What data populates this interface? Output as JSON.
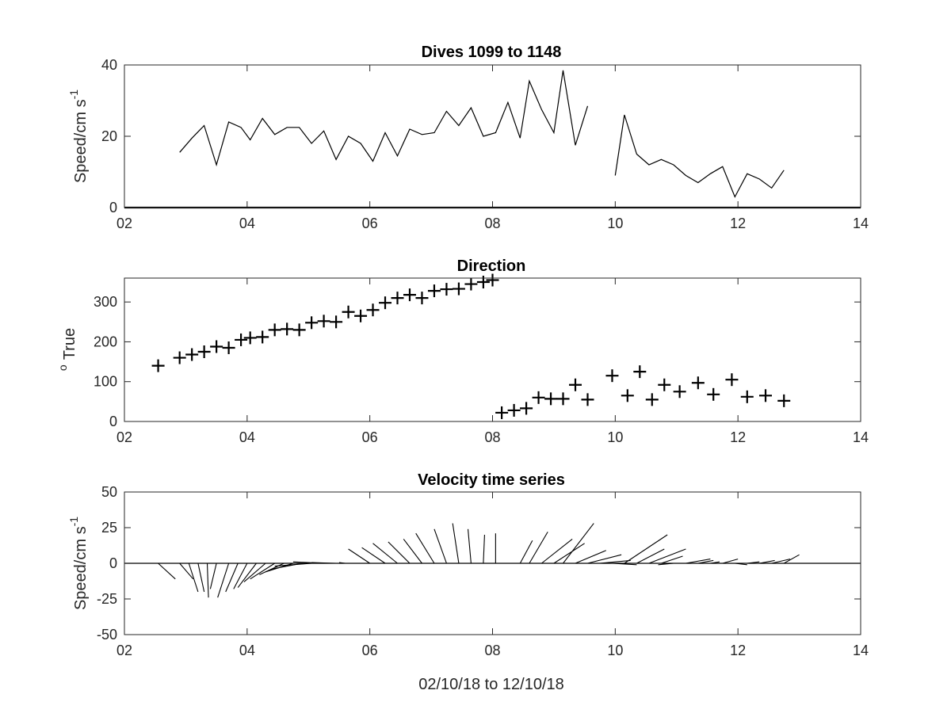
{
  "chart_data": [
    {
      "type": "line",
      "title": "Dives 1099 to 1148",
      "ylabel_main": "Speed/cm s",
      "ylabel_sup": "-1",
      "xlim": [
        2,
        14
      ],
      "ylim": [
        0,
        40
      ],
      "xticks": [
        2,
        4,
        6,
        8,
        10,
        12,
        14
      ],
      "xtick_labels": [
        "02",
        "04",
        "06",
        "08",
        "10",
        "12",
        "14"
      ],
      "yticks": [
        0,
        20,
        40
      ],
      "ytick_labels": [
        "0",
        "20",
        "40"
      ],
      "zero_line": true,
      "segments": [
        {
          "x": [
            2.9,
            3.1,
            3.3,
            3.5,
            3.7,
            3.9,
            4.05,
            4.25,
            4.45,
            4.65,
            4.85,
            5.05,
            5.25,
            5.45,
            5.65,
            5.85,
            6.05,
            6.25,
            6.45,
            6.65,
            6.85,
            7.05,
            7.25,
            7.45,
            7.65,
            7.85,
            8.05,
            8.25,
            8.45,
            8.6,
            8.8,
            9.0,
            9.15,
            9.35,
            9.55
          ],
          "y": [
            15.5,
            19.5,
            23,
            12,
            24,
            22.5,
            19,
            25,
            20.5,
            22.5,
            22.5,
            18,
            21.5,
            13.5,
            20,
            18,
            13,
            21,
            14.5,
            22,
            20.5,
            21,
            27,
            23,
            28,
            20,
            21,
            29.5,
            19.5,
            35.5,
            27.5,
            21,
            38.5,
            17.5,
            28.5
          ]
        },
        {
          "x": [
            10.0,
            10.15,
            10.35,
            10.55,
            10.75,
            10.95,
            11.15,
            11.35,
            11.55,
            11.75,
            11.95,
            12.15,
            12.35,
            12.55,
            12.75
          ],
          "y": [
            9,
            26,
            15,
            12,
            13.5,
            12,
            9,
            7,
            9.5,
            11.5,
            3,
            9.5,
            8,
            5.5,
            10.5
          ]
        }
      ]
    },
    {
      "type": "scatter",
      "title": "Direction",
      "ylabel_main": "True",
      "ylabel_pre": "o",
      "marker": "+",
      "xlim": [
        2,
        14
      ],
      "ylim": [
        0,
        360
      ],
      "xticks": [
        2,
        4,
        6,
        8,
        10,
        12,
        14
      ],
      "xtick_labels": [
        "02",
        "04",
        "06",
        "08",
        "10",
        "12",
        "14"
      ],
      "yticks": [
        0,
        100,
        200,
        300
      ],
      "ytick_labels": [
        "0",
        "100",
        "200",
        "300"
      ],
      "x": [
        2.55,
        2.9,
        3.1,
        3.3,
        3.5,
        3.7,
        3.9,
        4.05,
        4.25,
        4.45,
        4.65,
        4.85,
        5.05,
        5.25,
        5.45,
        5.65,
        5.85,
        6.05,
        6.25,
        6.45,
        6.65,
        6.85,
        7.05,
        7.25,
        7.45,
        7.65,
        7.85,
        8.0,
        8.15,
        8.35,
        8.55,
        8.75,
        8.95,
        9.15,
        9.35,
        9.55,
        9.95,
        10.2,
        10.4,
        10.6,
        10.8,
        11.05,
        11.35,
        11.6,
        11.9,
        12.15,
        12.45,
        12.75
      ],
      "y": [
        140,
        160,
        168,
        175,
        188,
        185,
        205,
        210,
        212,
        230,
        232,
        230,
        248,
        252,
        250,
        275,
        265,
        280,
        298,
        310,
        318,
        310,
        328,
        332,
        333,
        345,
        350,
        355,
        22,
        28,
        33,
        60,
        57,
        57,
        92,
        55,
        115,
        65,
        125,
        55,
        92,
        75,
        97,
        68,
        105,
        62,
        65,
        52
      ]
    },
    {
      "type": "quiver",
      "title": "Velocity time series",
      "ylabel_main": "Speed/cm s",
      "ylabel_sup": "-1",
      "xlabel": "02/10/18 to 12/10/18",
      "xlim": [
        2,
        14
      ],
      "ylim": [
        -50,
        50
      ],
      "xticks": [
        2,
        4,
        6,
        8,
        10,
        12,
        14
      ],
      "xtick_labels": [
        "02",
        "04",
        "06",
        "08",
        "10",
        "12",
        "14"
      ],
      "yticks": [
        -50,
        -25,
        0,
        25,
        50
      ],
      "ytick_labels": [
        "-50",
        "-25",
        "0",
        "25",
        "50"
      ],
      "vectors": [
        {
          "x": 2.55,
          "dx": 0.28,
          "dy": -11
        },
        {
          "x": 2.9,
          "dx": 0.22,
          "dy": -11
        },
        {
          "x": 3.05,
          "dx": 0.15,
          "dy": -20
        },
        {
          "x": 3.2,
          "dx": 0.1,
          "dy": -20
        },
        {
          "x": 3.35,
          "dx": 0.02,
          "dy": -24
        },
        {
          "x": 3.5,
          "dx": -0.1,
          "dy": -18
        },
        {
          "x": 3.7,
          "dx": -0.18,
          "dy": -24
        },
        {
          "x": 3.85,
          "dx": -0.2,
          "dy": -20
        },
        {
          "x": 4.0,
          "dx": -0.22,
          "dy": -18
        },
        {
          "x": 4.15,
          "dx": -0.3,
          "dy": -17
        },
        {
          "x": 4.3,
          "dx": -0.35,
          "dy": -13
        },
        {
          "x": 4.45,
          "dx": -0.4,
          "dy": -11
        },
        {
          "x": 4.6,
          "dx": -0.4,
          "dy": -8
        },
        {
          "x": 4.75,
          "dx": -0.45,
          "dy": -6
        },
        {
          "x": 4.9,
          "dx": -0.5,
          "dy": -4
        },
        {
          "x": 5.05,
          "dx": -0.6,
          "dy": -2
        },
        {
          "x": 5.25,
          "dx": -0.5,
          "dy": 1
        },
        {
          "x": 5.45,
          "dx": -0.4,
          "dy": 0.5
        },
        {
          "x": 5.6,
          "dx": -0.1,
          "dy": 0.5
        },
        {
          "x": 6.0,
          "dx": -0.35,
          "dy": 10
        },
        {
          "x": 6.25,
          "dx": -0.38,
          "dy": 11
        },
        {
          "x": 6.45,
          "dx": -0.4,
          "dy": 14
        },
        {
          "x": 6.65,
          "dx": -0.35,
          "dy": 15
        },
        {
          "x": 6.85,
          "dx": -0.3,
          "dy": 17
        },
        {
          "x": 7.05,
          "dx": -0.3,
          "dy": 21
        },
        {
          "x": 7.25,
          "dx": -0.2,
          "dy": 24
        },
        {
          "x": 7.45,
          "dx": -0.1,
          "dy": 28
        },
        {
          "x": 7.65,
          "dx": -0.05,
          "dy": 24
        },
        {
          "x": 7.85,
          "dx": 0.02,
          "dy": 20
        },
        {
          "x": 8.05,
          "dx": 0.0,
          "dy": 21
        },
        {
          "x": 8.45,
          "dx": 0.2,
          "dy": 16
        },
        {
          "x": 8.6,
          "dx": 0.3,
          "dy": 22
        },
        {
          "x": 8.8,
          "dx": 0.5,
          "dy": 17
        },
        {
          "x": 9.0,
          "dx": 0.5,
          "dy": 14
        },
        {
          "x": 9.15,
          "dx": 0.5,
          "dy": 28
        },
        {
          "x": 9.35,
          "dx": 0.5,
          "dy": 9
        },
        {
          "x": 9.55,
          "dx": 0.55,
          "dy": 6
        },
        {
          "x": 9.75,
          "dx": 0.5,
          "dy": 2
        },
        {
          "x": 9.95,
          "dx": 0.4,
          "dy": -1
        },
        {
          "x": 10.15,
          "dx": 0.7,
          "dy": 20
        },
        {
          "x": 10.35,
          "dx": 0.45,
          "dy": 10
        },
        {
          "x": 10.55,
          "dx": 0.6,
          "dy": 10
        },
        {
          "x": 10.75,
          "dx": 0.35,
          "dy": 5
        },
        {
          "x": 10.95,
          "dx": -0.25,
          "dy": -1
        },
        {
          "x": 11.15,
          "dx": 0.4,
          "dy": 3
        },
        {
          "x": 11.35,
          "dx": 0.25,
          "dy": 2
        },
        {
          "x": 11.55,
          "dx": 0.15,
          "dy": 1
        },
        {
          "x": 11.75,
          "dx": 0.25,
          "dy": 3
        },
        {
          "x": 11.95,
          "dx": 0.2,
          "dy": -1
        },
        {
          "x": 12.15,
          "dx": 0.2,
          "dy": 1
        },
        {
          "x": 12.35,
          "dx": 0.25,
          "dy": 2
        },
        {
          "x": 12.55,
          "dx": 0.3,
          "dy": 3
        },
        {
          "x": 12.75,
          "dx": 0.25,
          "dy": 6
        }
      ]
    }
  ]
}
